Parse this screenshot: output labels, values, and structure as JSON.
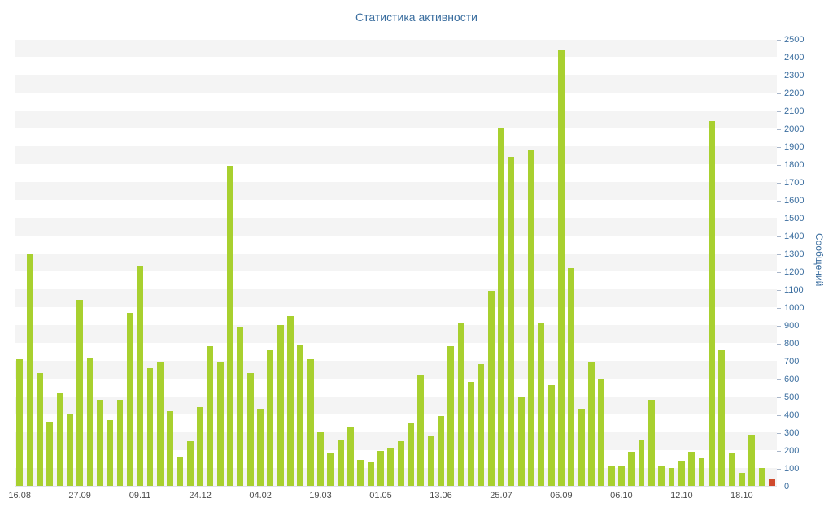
{
  "chart_data": {
    "type": "bar",
    "title": "Статистика активности",
    "ylabel": "Сообщений",
    "xlabel": "",
    "ylim": [
      0,
      2500
    ],
    "ytick_step": 100,
    "yticks": [
      0,
      100,
      200,
      300,
      400,
      500,
      600,
      700,
      800,
      900,
      1000,
      1100,
      1200,
      1300,
      1400,
      1500,
      1600,
      1700,
      1800,
      1900,
      2000,
      2100,
      2200,
      2300,
      2400,
      2500
    ],
    "x_labels": [
      "16.08",
      "27.09",
      "09.11",
      "24.12",
      "04.02",
      "19.03",
      "01.05",
      "13.06",
      "25.07",
      "06.09",
      "06.10",
      "12.10",
      "18.10"
    ],
    "label_every": 6,
    "values": [
      710,
      1300,
      630,
      360,
      520,
      400,
      1040,
      720,
      480,
      370,
      480,
      970,
      1230,
      660,
      690,
      420,
      160,
      250,
      440,
      780,
      690,
      1790,
      890,
      630,
      430,
      760,
      900,
      950,
      790,
      710,
      300,
      180,
      255,
      330,
      145,
      130,
      195,
      210,
      250,
      350,
      620,
      280,
      390,
      780,
      910,
      580,
      680,
      1090,
      2000,
      1840,
      500,
      1880,
      910,
      565,
      2440,
      1220,
      430,
      690,
      600,
      110,
      110,
      190,
      260,
      480,
      110,
      100,
      140,
      190,
      155,
      2040,
      760,
      185,
      75,
      285,
      100,
      40
    ],
    "grid": "horizontal-bands",
    "legend": "none",
    "colors": {
      "bar": "#a8d02f",
      "final_bar": "#cf4a2d",
      "title": "#3b6e9f",
      "axis_text": "#3b6e9f",
      "x_label_text": "#4c4c4c",
      "stripe": "#f4f4f4",
      "axis_line": "#d4dbe5"
    }
  }
}
